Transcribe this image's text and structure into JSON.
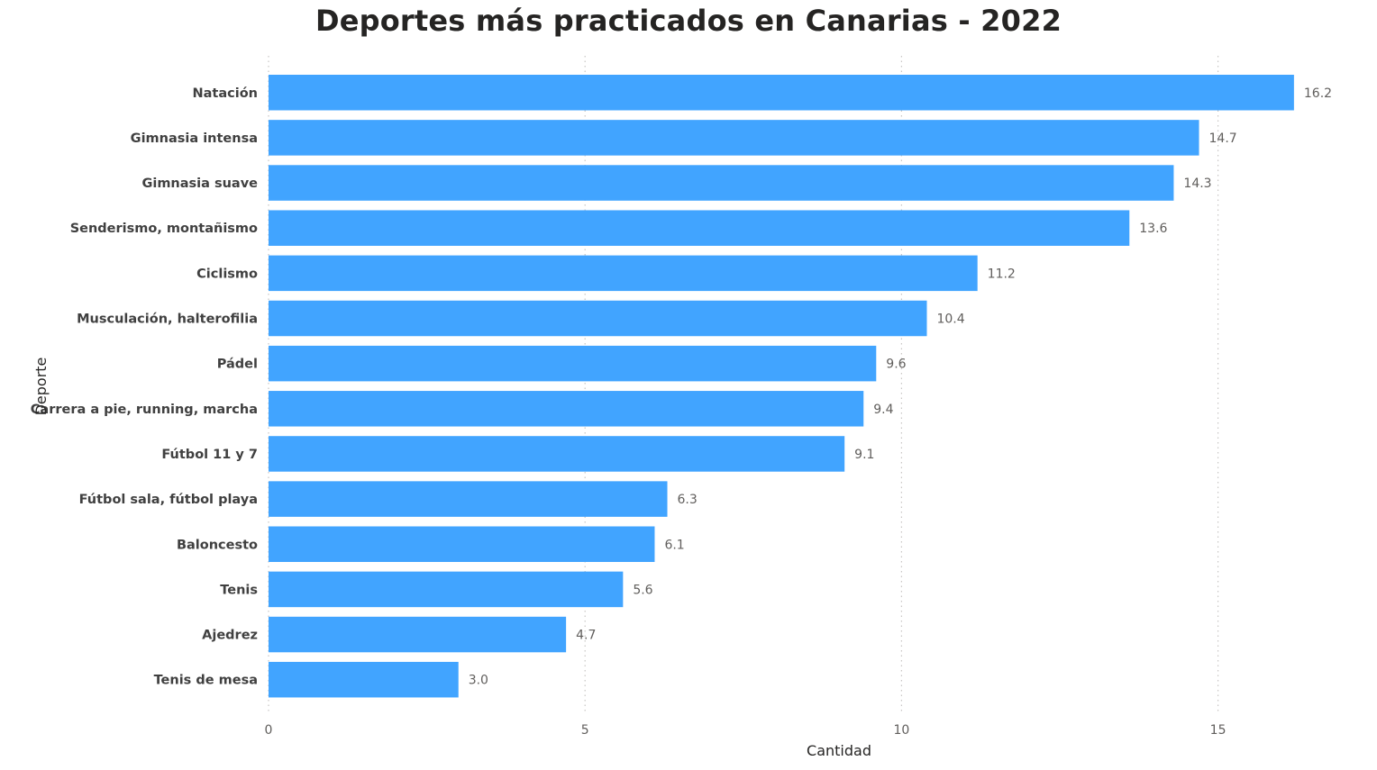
{
  "chart_data": {
    "type": "bar",
    "orientation": "horizontal",
    "title": "Deportes más practicados en Canarias - 2022",
    "xlabel": "Cantidad",
    "ylabel": "Deporte",
    "categories": [
      "Natación",
      "Gimnasia intensa",
      "Gimnasia suave",
      "Senderismo, montañismo",
      "Ciclismo",
      "Musculación, halterofilia",
      "Pádel",
      "Carrera a pie, running, marcha",
      "Fútbol 11 y 7",
      "Fútbol sala, fútbol playa",
      "Baloncesto",
      "Tenis",
      "Ajedrez",
      "Tenis de mesa"
    ],
    "values": [
      16.2,
      14.7,
      14.3,
      13.6,
      11.2,
      10.4,
      9.6,
      9.4,
      9.1,
      6.3,
      6.1,
      5.6,
      4.7,
      3.0
    ],
    "value_labels": [
      "16.2",
      "14.7",
      "14.3",
      "13.6",
      "11.2",
      "10.4",
      "9.6",
      "9.4",
      "9.1",
      "6.3",
      "6.1",
      "5.6",
      "4.7",
      "3.0"
    ],
    "xticks": [
      0,
      5,
      10,
      15
    ],
    "xlim": [
      0,
      16.7
    ],
    "grid": true,
    "legend": "none",
    "bar_color": "#41A4FF"
  }
}
